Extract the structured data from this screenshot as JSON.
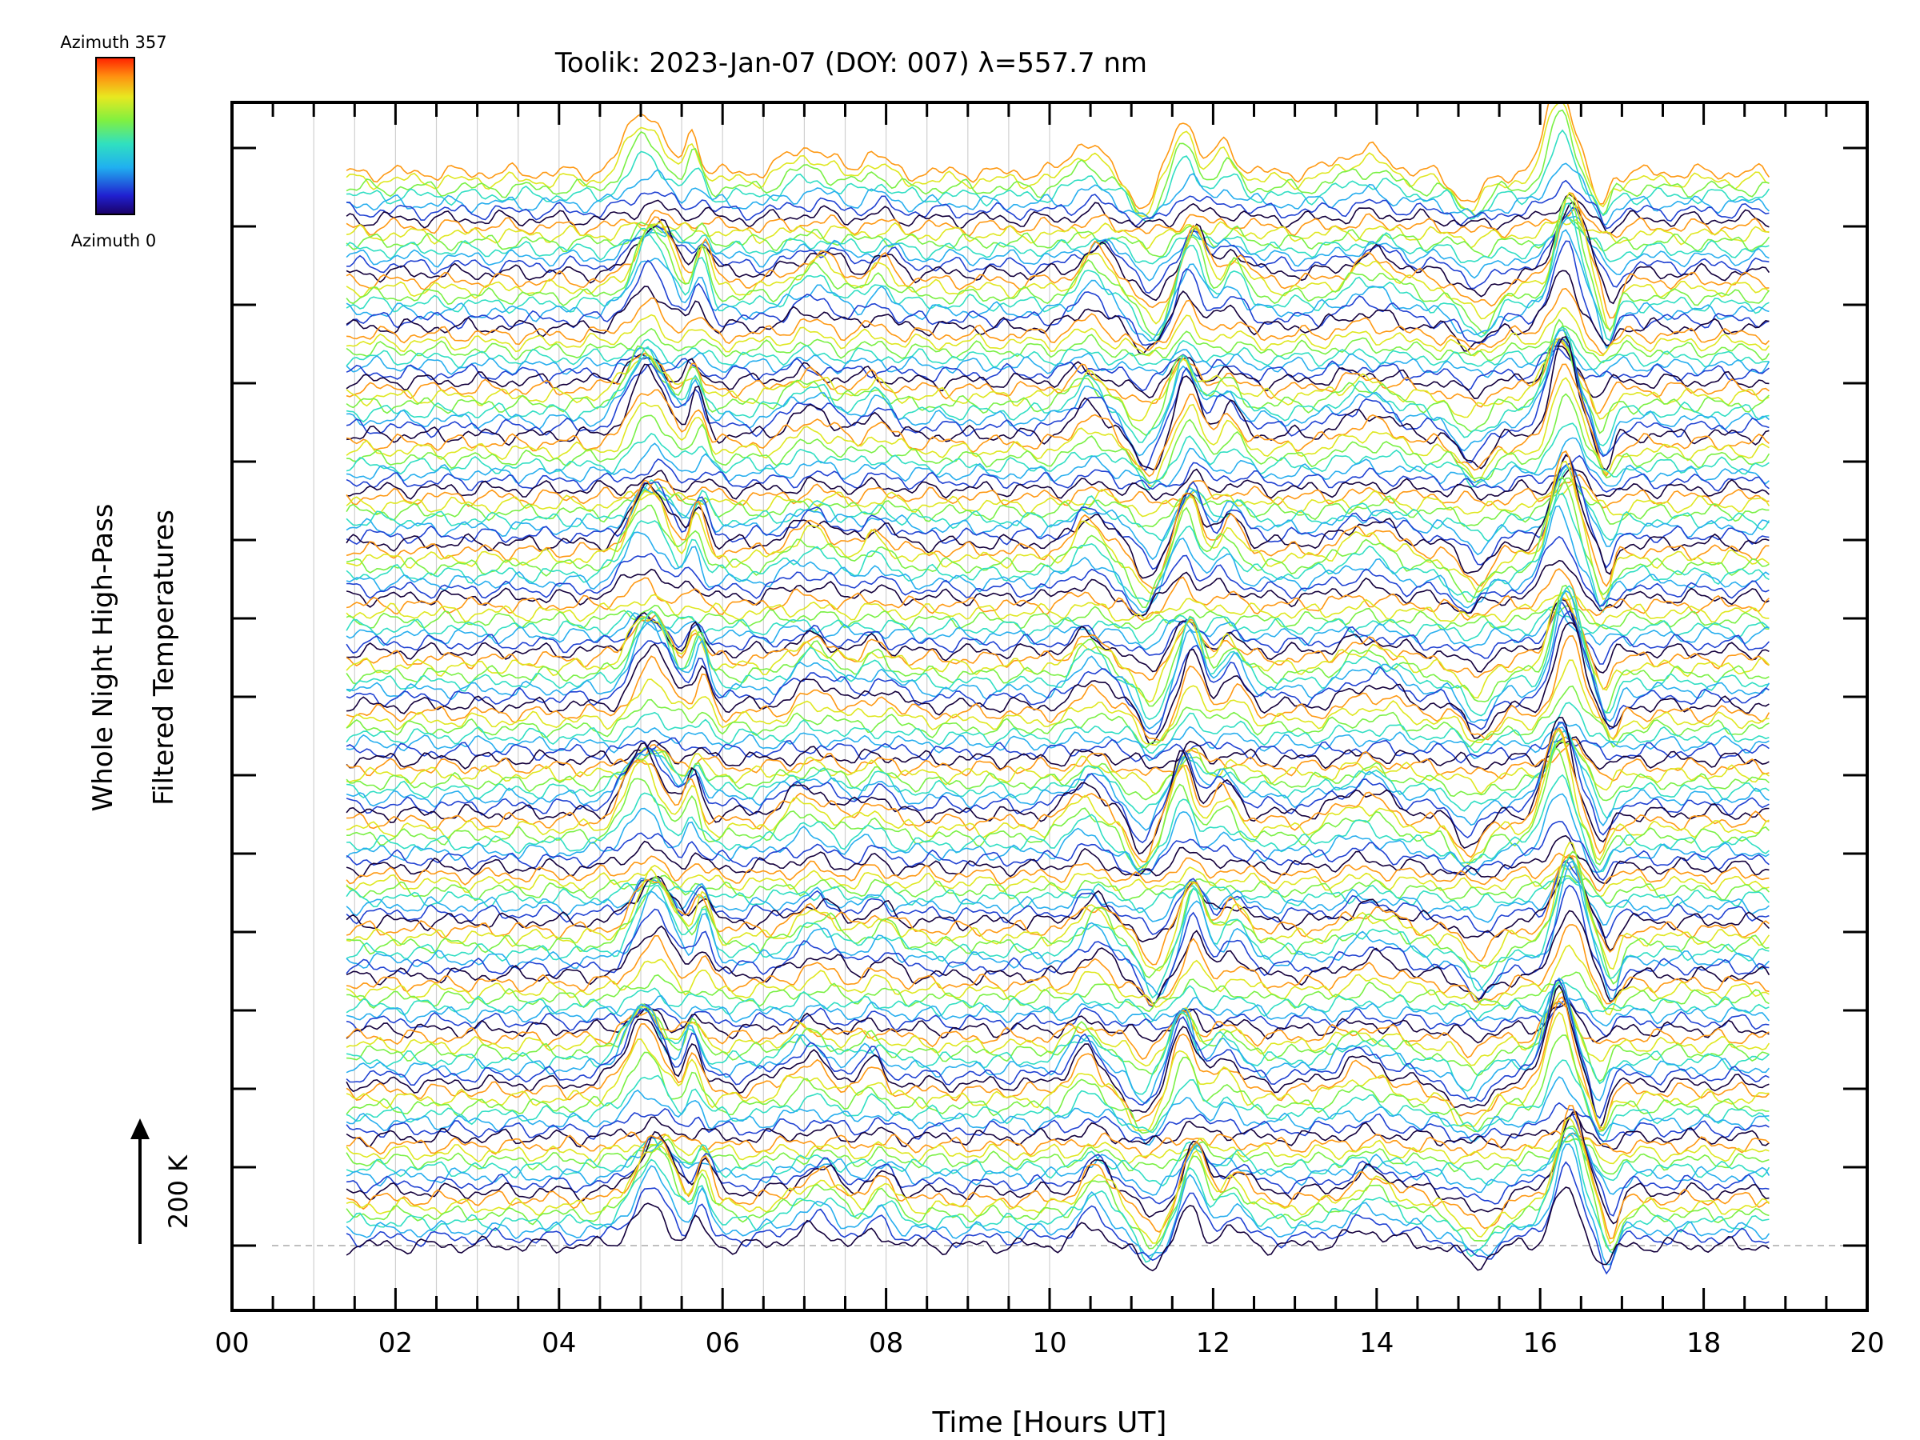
{
  "chart_data": {
    "type": "line",
    "title": "Toolik: 2023-Jan-07 (DOY: 007) λ=557.7 nm",
    "xlabel": "Time [Hours UT]",
    "ylabel_line1": "Whole Night High-Pass",
    "ylabel_line2": "Filtered Temperatures",
    "xlim": [
      0,
      20
    ],
    "x_ticks": [
      "00",
      "02",
      "04",
      "06",
      "08",
      "10",
      "12",
      "14",
      "16",
      "18",
      "20"
    ],
    "x_tick_values": [
      0,
      2,
      4,
      6,
      8,
      10,
      12,
      14,
      16,
      18,
      20
    ],
    "x_range": [
      1.4,
      18.8
    ],
    "grid": true,
    "scale_bar_label": "200 K",
    "colorbar": {
      "top_label": "Azimuth 357",
      "bottom_label": "Azimuth 0",
      "colormap": "rainbow",
      "min_azimuth": 0,
      "max_azimuth": 357
    },
    "series_count": 140,
    "series_description_hidden": true,
    "common_features": [
      {
        "time": 5.1,
        "amplitude_K": 110,
        "width_h": 0.3
      },
      {
        "time": 5.7,
        "amplitude_K": 70,
        "width_h": 0.12
      },
      {
        "time": 7.1,
        "amplitude_K": 45,
        "width_h": 0.35
      },
      {
        "time": 7.9,
        "amplitude_K": 35,
        "width_h": 0.2
      },
      {
        "time": 10.5,
        "amplitude_K": 55,
        "width_h": 0.25
      },
      {
        "time": 11.2,
        "amplitude_K": -60,
        "width_h": 0.2
      },
      {
        "time": 11.7,
        "amplitude_K": 100,
        "width_h": 0.18
      },
      {
        "time": 12.2,
        "amplitude_K": 50,
        "width_h": 0.2
      },
      {
        "time": 13.9,
        "amplitude_K": 40,
        "width_h": 0.4
      },
      {
        "time": 15.2,
        "amplitude_K": -50,
        "width_h": 0.25
      },
      {
        "time": 16.3,
        "amplitude_K": 160,
        "width_h": 0.22
      },
      {
        "time": 16.8,
        "amplitude_K": -60,
        "width_h": 0.12
      }
    ]
  }
}
